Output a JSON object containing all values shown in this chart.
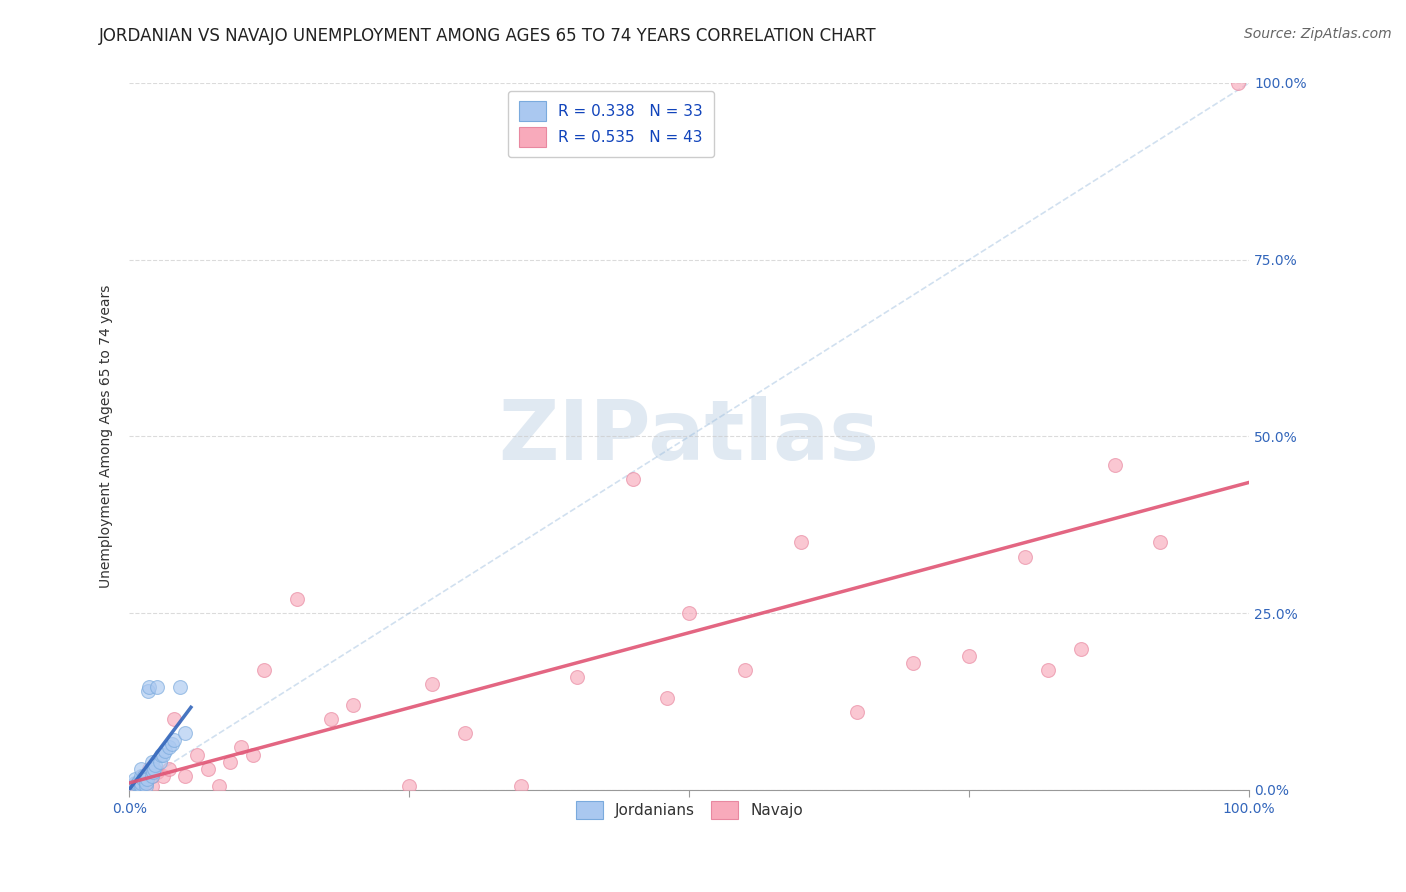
{
  "title": "JORDANIAN VS NAVAJO UNEMPLOYMENT AMONG AGES 65 TO 74 YEARS CORRELATION CHART",
  "source": "Source: ZipAtlas.com",
  "ylabel": "Unemployment Among Ages 65 to 74 years",
  "legend_labels": [
    "Jordanians",
    "Navajo"
  ],
  "jordanian_R": "R = 0.338",
  "jordanian_N": "N = 33",
  "navajo_R": "R = 0.535",
  "navajo_N": "N = 43",
  "jordanian_color": "#aac8f0",
  "jordanian_edge_color": "#7aaadd",
  "jordanian_line_color": "#3366bb",
  "navajo_color": "#f8aabb",
  "navajo_edge_color": "#e888a0",
  "navajo_line_color": "#e05575",
  "diagonal_color": "#99bbdd",
  "background_color": "#ffffff",
  "grid_color": "#cccccc",
  "xlim": [
    0,
    1.0
  ],
  "ylim": [
    0,
    1.0
  ],
  "right_ytick_positions": [
    0.0,
    0.25,
    0.5,
    0.75,
    1.0
  ],
  "right_ytick_labels": [
    "0.0%",
    "25.0%",
    "50.0%",
    "75.0%",
    "100.0%"
  ],
  "jordanian_x": [
    0.005,
    0.005,
    0.005,
    0.007,
    0.008,
    0.009,
    0.01,
    0.01,
    0.01,
    0.01,
    0.012,
    0.013,
    0.015,
    0.015,
    0.016,
    0.017,
    0.018,
    0.019,
    0.02,
    0.02,
    0.021,
    0.022,
    0.023,
    0.025,
    0.027,
    0.028,
    0.03,
    0.032,
    0.035,
    0.038,
    0.04,
    0.045,
    0.05
  ],
  "jordanian_y": [
    0.005,
    0.01,
    0.015,
    0.008,
    0.01,
    0.012,
    0.005,
    0.01,
    0.02,
    0.03,
    0.015,
    0.02,
    0.005,
    0.01,
    0.015,
    0.14,
    0.145,
    0.03,
    0.02,
    0.04,
    0.025,
    0.03,
    0.035,
    0.145,
    0.04,
    0.05,
    0.05,
    0.055,
    0.06,
    0.065,
    0.07,
    0.145,
    0.08
  ],
  "navajo_x": [
    0.005,
    0.007,
    0.01,
    0.012,
    0.015,
    0.016,
    0.018,
    0.02,
    0.02,
    0.025,
    0.03,
    0.035,
    0.04,
    0.05,
    0.06,
    0.07,
    0.08,
    0.09,
    0.1,
    0.11,
    0.12,
    0.15,
    0.18,
    0.2,
    0.25,
    0.27,
    0.3,
    0.35,
    0.4,
    0.45,
    0.48,
    0.5,
    0.55,
    0.6,
    0.65,
    0.7,
    0.75,
    0.8,
    0.82,
    0.85,
    0.88,
    0.92,
    0.99
  ],
  "navajo_y": [
    0.005,
    0.01,
    0.005,
    0.02,
    0.01,
    0.015,
    0.03,
    0.005,
    0.02,
    0.025,
    0.02,
    0.03,
    0.1,
    0.02,
    0.05,
    0.03,
    0.005,
    0.04,
    0.06,
    0.05,
    0.17,
    0.27,
    0.1,
    0.12,
    0.005,
    0.15,
    0.08,
    0.005,
    0.16,
    0.44,
    0.13,
    0.25,
    0.17,
    0.35,
    0.11,
    0.18,
    0.19,
    0.33,
    0.17,
    0.2,
    0.46,
    0.35,
    1.0
  ],
  "marker_size": 100,
  "marker_alpha": 0.65,
  "line_alpha": 0.9,
  "diagonal_alpha": 0.45,
  "title_fontsize": 12,
  "axis_fontsize": 10,
  "legend_fontsize": 11,
  "source_fontsize": 10,
  "watermark_text": "ZIPatlas",
  "watermark_color": "#c8d8e8"
}
